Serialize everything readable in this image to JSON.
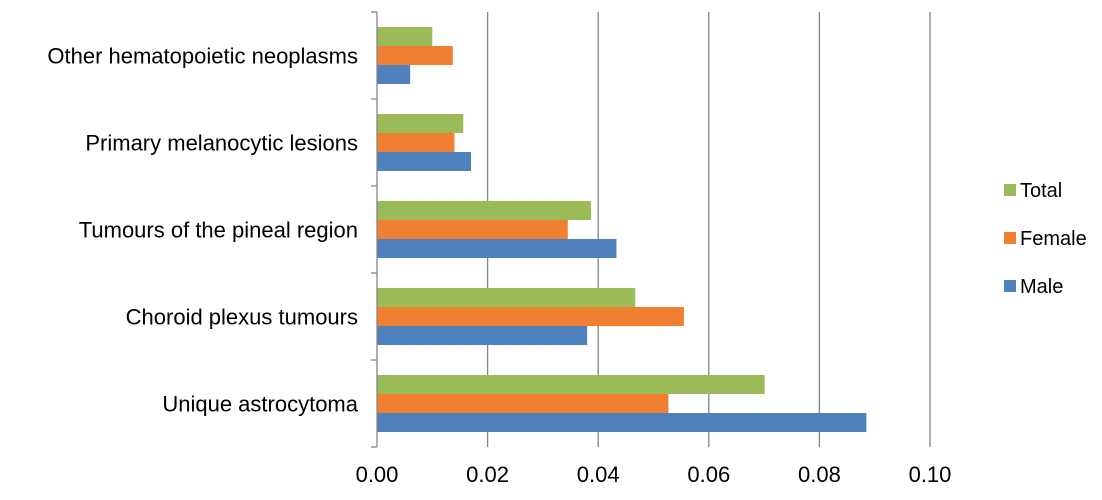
{
  "chart_data": {
    "type": "bar",
    "orientation": "horizontal",
    "title": "",
    "xlabel": "",
    "ylabel": "",
    "categories": [
      "Unique astrocytoma",
      "Choroid plexus tumours",
      "Tumours of the pineal region",
      "Primary melanocytic lesions",
      "Other hematopoietic neoplasms"
    ],
    "series": [
      {
        "name": "Male",
        "color": "#4f81bd",
        "values": [
          0.0885,
          0.038,
          0.0433,
          0.017,
          0.006
        ]
      },
      {
        "name": "Female",
        "color": "#f07f32",
        "values": [
          0.0527,
          0.0555,
          0.0345,
          0.014,
          0.0137
        ]
      },
      {
        "name": "Total",
        "color": "#9bbb59",
        "values": [
          0.0701,
          0.0467,
          0.0387,
          0.0156,
          0.01
        ]
      }
    ],
    "xlim": [
      0,
      0.1
    ],
    "xticks": [
      "0.00",
      "0.02",
      "0.04",
      "0.06",
      "0.08",
      "0.10"
    ],
    "grid": true,
    "legend_position": "right",
    "legend_order": [
      "Total",
      "Female",
      "Male"
    ]
  }
}
